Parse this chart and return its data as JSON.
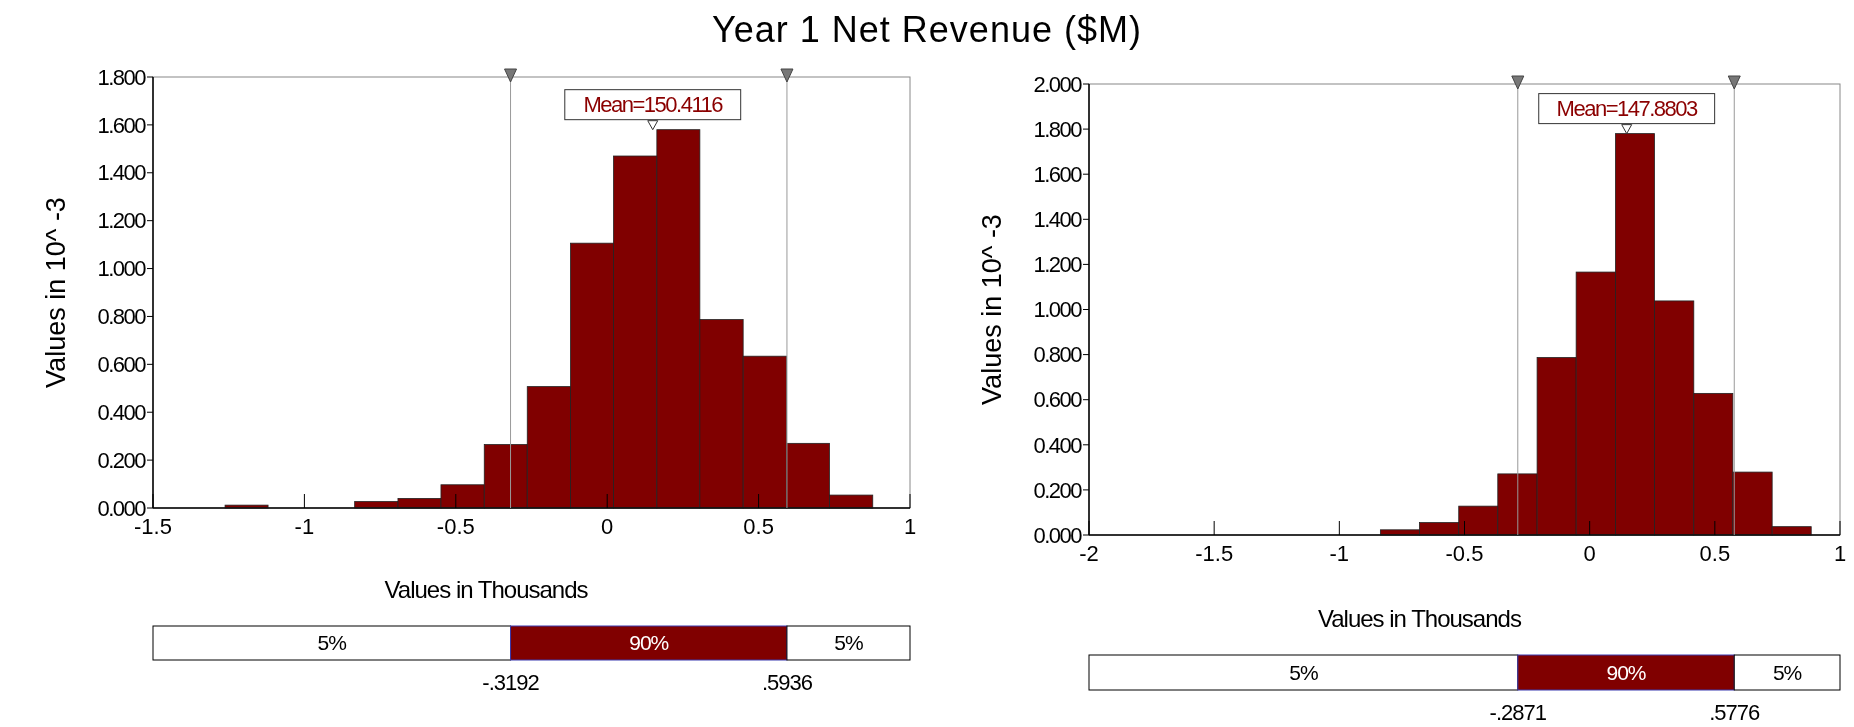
{
  "chart_data": [
    {
      "type": "histogram",
      "title": "Year 1 Net Revenue ($M)",
      "xlabel": "Values in Thousands",
      "ylabel": "Values in 10^ -3",
      "color": "#800000",
      "bins": [
        -1.262,
        -1.12,
        -0.977,
        -0.834,
        -0.691,
        -0.549,
        -0.406,
        -0.264,
        -0.121,
        0.021,
        0.164,
        0.306,
        0.449,
        0.592,
        0.734,
        0.877
      ],
      "values": [
        0.012,
        0,
        0,
        0.027,
        0.04,
        0.097,
        0.265,
        0.507,
        1.106,
        1.47,
        1.58,
        0.787,
        0.634,
        0.27,
        0.054
      ],
      "xlim": [
        -1.5,
        1
      ],
      "xticks": [
        -1.5,
        -1,
        -0.5,
        0,
        0.5,
        1
      ],
      "ylim": [
        0,
        1.8
      ],
      "yticks": [
        {
          "value": 0,
          "label": "0.000"
        },
        {
          "value": 0.2,
          "label": "0.200"
        },
        {
          "value": 0.4,
          "label": "0.400"
        },
        {
          "value": 0.6,
          "label": "0.600"
        },
        {
          "value": 0.8,
          "label": "0.800"
        },
        {
          "value": 1,
          "label": "1.000"
        },
        {
          "value": 1.2,
          "label": "1.200"
        },
        {
          "value": 1.4,
          "label": "1.400"
        },
        {
          "value": 1.6,
          "label": "1.600"
        },
        {
          "value": 1.8,
          "label": "1.800"
        }
      ],
      "ref_lines": [
        {
          "axis": "x",
          "value": -0.3192,
          "color": "#999999"
        },
        {
          "axis": "x",
          "value": 0.5936,
          "color": "#999999"
        }
      ],
      "annotations": [
        {
          "text": "Mean=150.4116",
          "x": 0.1504,
          "y": 1.58
        },
        "5%",
        "90%",
        "5%",
        "-.3192",
        ".5936"
      ],
      "grid": false
    },
    {
      "type": "histogram",
      "xlabel": "Values in Thousands",
      "ylabel": "Values in 10^ -3",
      "color": "#800000",
      "bins": [
        -0.836,
        -0.68,
        -0.523,
        -0.367,
        -0.21,
        -0.054,
        0.103,
        0.259,
        0.416,
        0.572,
        0.729,
        0.885
      ],
      "values": [
        0.023,
        0.055,
        0.128,
        0.271,
        0.787,
        1.166,
        1.78,
        1.038,
        0.628,
        0.279,
        0.037
      ],
      "xlim": [
        -2,
        1
      ],
      "xticks": [
        -2,
        -1.5,
        -1,
        -0.5,
        0,
        0.5,
        1
      ],
      "ylim": [
        0,
        2
      ],
      "yticks": [
        {
          "value": 0,
          "label": "0.000"
        },
        {
          "value": 0.2,
          "label": "0.200"
        },
        {
          "value": 0.4,
          "label": "0.400"
        },
        {
          "value": 0.6,
          "label": "0.600"
        },
        {
          "value": 0.8,
          "label": "0.800"
        },
        {
          "value": 1,
          "label": "1.000"
        },
        {
          "value": 1.2,
          "label": "1.200"
        },
        {
          "value": 1.4,
          "label": "1.400"
        },
        {
          "value": 1.6,
          "label": "1.600"
        },
        {
          "value": 1.8,
          "label": "1.800"
        },
        {
          "value": 2,
          "label": "2.000"
        }
      ],
      "ref_lines": [
        {
          "axis": "x",
          "value": -0.2871,
          "color": "#999999"
        },
        {
          "axis": "x",
          "value": 0.5776,
          "color": "#999999"
        }
      ],
      "annotations": [
        {
          "text": "Mean=147.8803",
          "x": 0.1479,
          "y": 1.78
        },
        "5%",
        "90%",
        "5%",
        "-.2871",
        ".5776"
      ],
      "grid": false
    }
  ]
}
